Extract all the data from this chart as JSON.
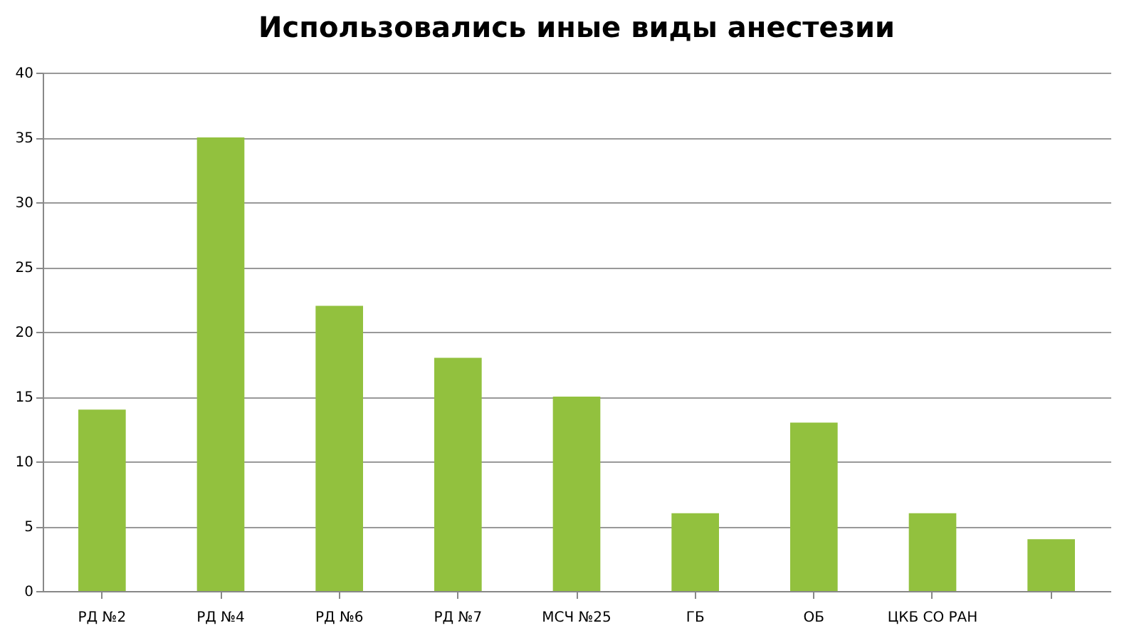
{
  "chart_data": {
    "type": "bar",
    "title": "Использовались иные виды анестезии",
    "categories": [
      "РД №2",
      "РД №4",
      "РД №6",
      "РД №7",
      "МСЧ №25",
      "ГБ",
      "ОБ",
      "ЦКБ СО РАН",
      null
    ],
    "values": [
      14,
      35,
      22,
      18,
      15,
      6,
      13,
      6,
      4
    ],
    "color": "#92c13e",
    "ylim": [
      0,
      40
    ],
    "yticks": [
      0,
      5,
      10,
      15,
      20,
      25,
      30,
      35,
      40
    ],
    "grid": "y"
  }
}
